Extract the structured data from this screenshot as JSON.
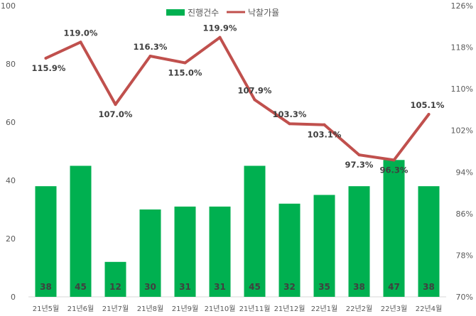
{
  "chart_data": {
    "type": "bar+line",
    "categories": [
      "21년5월",
      "21년6월",
      "21년7월",
      "21년8월",
      "21년9월",
      "21년10월",
      "21년11월",
      "21년12월",
      "22년1월",
      "22년2월",
      "22년3월",
      "22년4월"
    ],
    "series": [
      {
        "name": "진행건수",
        "type": "bar",
        "axis": "left",
        "color": "#00b050",
        "values": [
          38,
          45,
          12,
          30,
          31,
          31,
          45,
          32,
          35,
          38,
          47,
          38
        ],
        "labels": [
          "38",
          "45",
          "12",
          "30",
          "31",
          "31",
          "45",
          "32",
          "35",
          "38",
          "47",
          "38"
        ]
      },
      {
        "name": "낙찰가율",
        "type": "line",
        "axis": "right",
        "color": "#c0504d",
        "values": [
          115.9,
          119.0,
          107.0,
          116.3,
          115.0,
          119.9,
          107.9,
          103.3,
          103.1,
          97.3,
          96.3,
          105.1
        ],
        "labels": [
          "115.9%",
          "119.0%",
          "107.0%",
          "116.3%",
          "115.0%",
          "119.9%",
          "107.9%",
          "103.3%",
          "103.1%",
          "97.3%",
          "96.3%",
          "105.1%"
        ]
      }
    ],
    "y_left": {
      "min": 0,
      "max": 100,
      "ticks": [
        "0",
        "20",
        "40",
        "60",
        "80",
        "100"
      ]
    },
    "y_right": {
      "min": 70,
      "max": 126,
      "ticks": [
        "70%",
        "78%",
        "86%",
        "94%",
        "102%",
        "110%",
        "118%",
        "126%"
      ]
    },
    "legend": {
      "position": "top-center",
      "entries": [
        "진행건수",
        "낙찰가율"
      ]
    },
    "grid": false
  }
}
